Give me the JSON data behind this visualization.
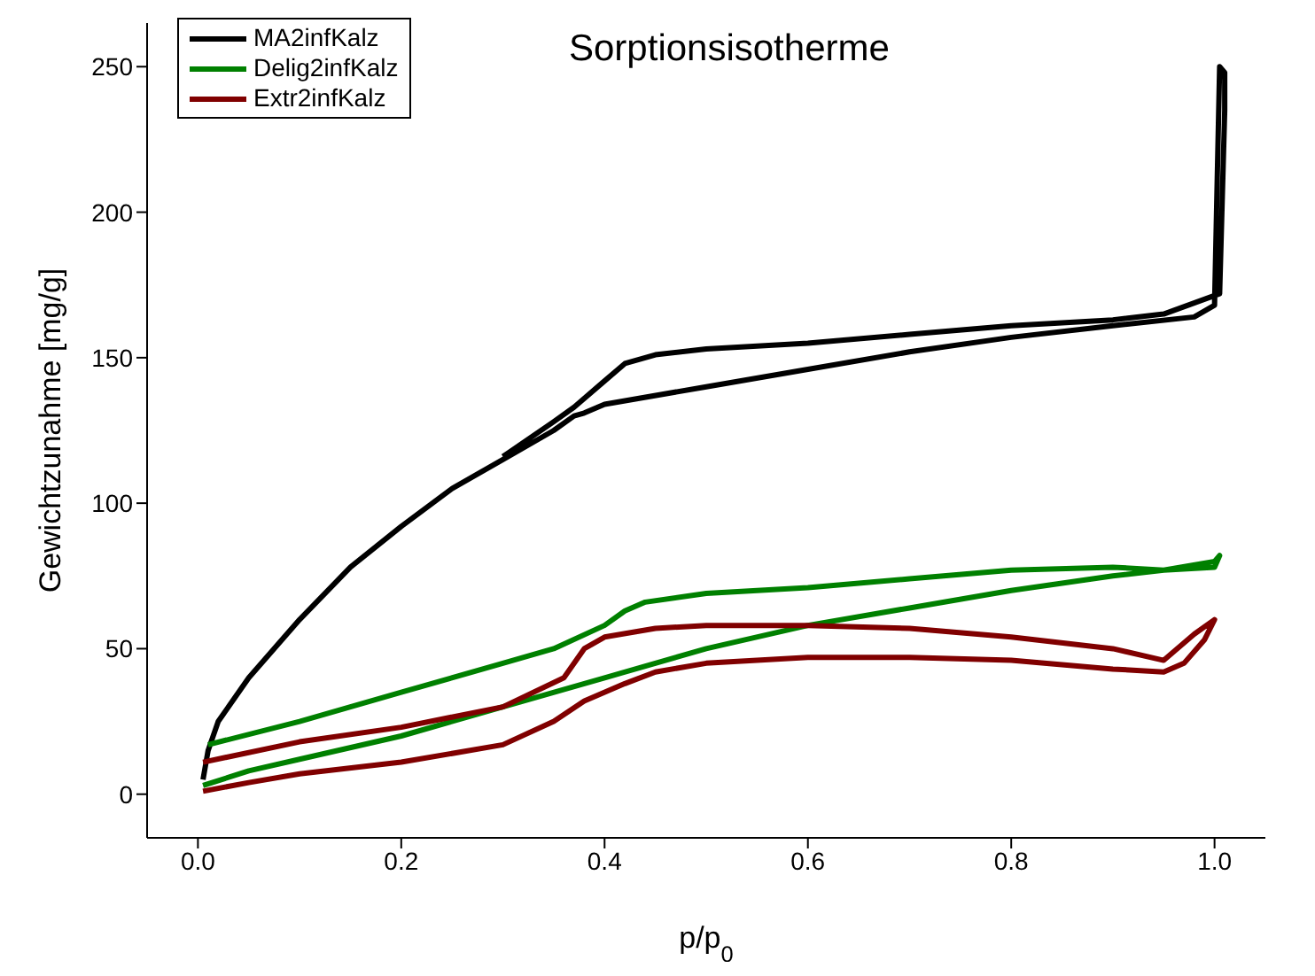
{
  "chart_data": {
    "type": "line",
    "title": "Sorptionsisotherme",
    "xlabel": "p/p$_{0}$",
    "ylabel": "Gewichtzunahme [mg/g]",
    "xlim": [
      -0.05,
      1.05
    ],
    "ylim": [
      -15,
      265
    ],
    "xticks": [
      {
        "value": 0,
        "label": "0.0"
      },
      {
        "value": 0.2,
        "label": "0.2"
      },
      {
        "value": 0.4,
        "label": "0.4"
      },
      {
        "value": 0.6,
        "label": "0.6"
      },
      {
        "value": 0.8,
        "label": "0.8"
      },
      {
        "value": 1,
        "label": "1.0"
      }
    ],
    "yticks": [
      0,
      50,
      100,
      150,
      200,
      250
    ],
    "grid": false,
    "legend": "top left",
    "marker": "none",
    "line_style": "solid",
    "series": [
      {
        "name": "MA2infKalz",
        "color": "#000000",
        "x": [
          0.005,
          0.01,
          0.02,
          0.05,
          0.1,
          0.15,
          0.2,
          0.25,
          0.3,
          0.35,
          0.37,
          0.38,
          0.4,
          0.5,
          0.6,
          0.7,
          0.8,
          0.9,
          0.98,
          1.0,
          1.005,
          1.01,
          1.01,
          1.005,
          0.95,
          0.9,
          0.8,
          0.7,
          0.6,
          0.5,
          0.45,
          0.42,
          0.4,
          0.37,
          0.35,
          0.3
        ],
        "values": [
          5,
          15,
          25,
          40,
          60,
          78,
          92,
          105,
          115,
          125,
          130,
          131,
          134,
          140,
          146,
          152,
          157,
          161,
          164,
          168,
          250,
          248,
          235,
          172,
          165,
          163,
          161,
          158,
          155,
          153,
          151,
          148,
          142,
          133,
          128,
          116
        ]
      },
      {
        "name": "Delig2infKalz",
        "color": "#008000",
        "x": [
          0.005,
          0.05,
          0.1,
          0.2,
          0.3,
          0.4,
          0.5,
          0.6,
          0.7,
          0.8,
          0.9,
          0.95,
          1.0,
          1.005,
          1.0,
          0.95,
          0.9,
          0.8,
          0.7,
          0.6,
          0.5,
          0.44,
          0.42,
          0.4,
          0.35,
          0.3,
          0.2,
          0.1,
          0.01
        ],
        "values": [
          3,
          8,
          12,
          20,
          30,
          40,
          50,
          58,
          64,
          70,
          75,
          77,
          80,
          82,
          78,
          77,
          78,
          77,
          74,
          71,
          69,
          66,
          63,
          58,
          50,
          45,
          35,
          25,
          17
        ]
      },
      {
        "name": "Extr2infKalz",
        "color": "#800000",
        "x": [
          0.005,
          0.05,
          0.1,
          0.2,
          0.3,
          0.35,
          0.38,
          0.42,
          0.45,
          0.5,
          0.6,
          0.7,
          0.8,
          0.9,
          0.95,
          0.97,
          0.99,
          1.0,
          0.98,
          0.95,
          0.9,
          0.8,
          0.7,
          0.6,
          0.5,
          0.45,
          0.4,
          0.38,
          0.36,
          0.3,
          0.2,
          0.1,
          0.005
        ],
        "values": [
          1,
          4,
          7,
          11,
          17,
          25,
          32,
          38,
          42,
          45,
          47,
          47,
          46,
          43,
          42,
          45,
          53,
          60,
          55,
          46,
          50,
          54,
          57,
          58,
          58,
          57,
          54,
          50,
          40,
          30,
          23,
          18,
          11
        ]
      }
    ]
  }
}
